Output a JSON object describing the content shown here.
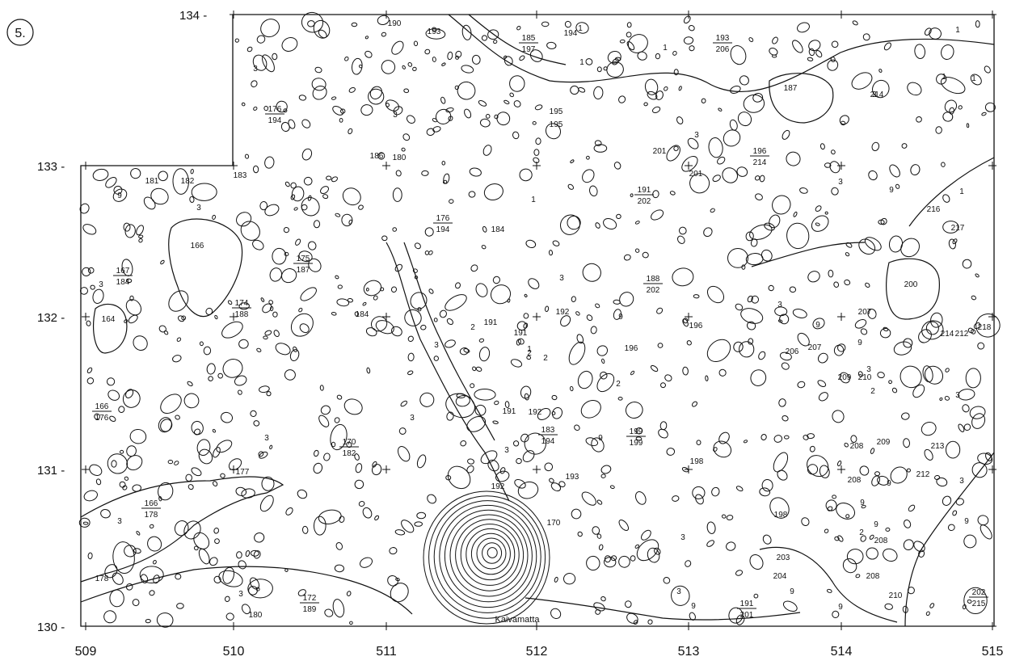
{
  "plate_number": "5.",
  "axes": {
    "x_ticks": [
      "509",
      "510",
      "511",
      "512",
      "513",
      "514",
      "515"
    ],
    "y_ticks": [
      "134 -",
      "133 -",
      "132 -",
      "131 -",
      "130 -"
    ]
  },
  "place_label": "Kaivamatta",
  "stratigraphy_labels": [
    "1",
    "1",
    "1",
    "1",
    "1",
    "1",
    "1",
    "1",
    "1",
    "2",
    "2",
    "2",
    "2",
    "2",
    "2",
    "3",
    "3",
    "3",
    "3",
    "3",
    "3",
    "3",
    "3",
    "3",
    "3",
    "3",
    "3",
    "3",
    "3",
    "3",
    "3",
    "3",
    "3",
    "3",
    "3",
    "9",
    "9",
    "9",
    "9",
    "9",
    "9",
    "9",
    "9",
    "9",
    "9",
    "9",
    "9",
    "9",
    "164",
    "166",
    "170",
    "177",
    "178",
    "180",
    "180",
    "181",
    "182",
    "183",
    "184",
    "184",
    "186",
    "187",
    "190",
    "191",
    "191",
    "191",
    "192",
    "192",
    "192",
    "193",
    "193",
    "194",
    "195",
    "195",
    "196",
    "196",
    "198",
    "198",
    "200",
    "201",
    "201",
    "203",
    "204",
    "206",
    "207",
    "207",
    "208",
    "208",
    "208",
    "208",
    "209",
    "209",
    "210",
    "210",
    "212",
    "212",
    "213",
    "214",
    "214",
    "216",
    "217",
    "218"
  ],
  "fraction_labels": [
    {
      "num": "185",
      "den": "197"
    },
    {
      "num": "193",
      "den": "206"
    },
    {
      "num": "176",
      "den": "194"
    },
    {
      "num": "196",
      "den": "214"
    },
    {
      "num": "191",
      "den": "202"
    },
    {
      "num": "176",
      "den": "194"
    },
    {
      "num": "167",
      "den": "184"
    },
    {
      "num": "175",
      "den": "187"
    },
    {
      "num": "174",
      "den": "188"
    },
    {
      "num": "188",
      "den": "202"
    },
    {
      "num": "166",
      "den": "176"
    },
    {
      "num": "170",
      "den": "182"
    },
    {
      "num": "183",
      "den": "194"
    },
    {
      "num": "199",
      "den": "199"
    },
    {
      "num": "166",
      "den": "178"
    },
    {
      "num": "172",
      "den": "189"
    },
    {
      "num": "191",
      "den": "201"
    },
    {
      "num": "202",
      "den": "215"
    }
  ]
}
